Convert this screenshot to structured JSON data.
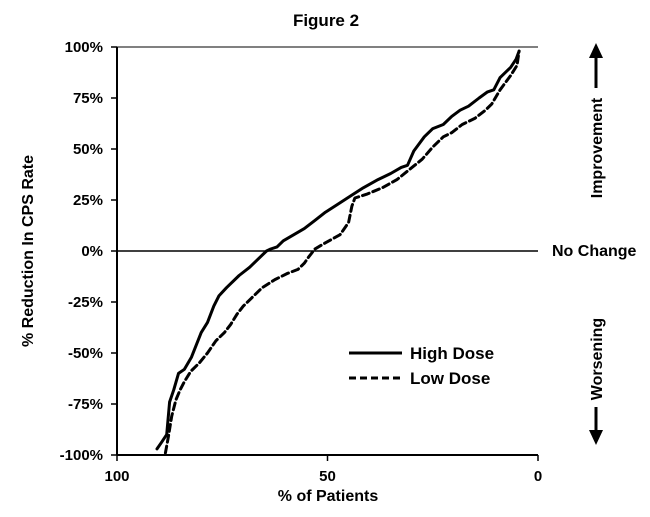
{
  "chart_data": {
    "type": "line",
    "title": "Figure 2",
    "xlabel": "% of Patients",
    "ylabel": "% Reduction In CPS Rate",
    "xlim": [
      100,
      0
    ],
    "ylim": [
      -100,
      100
    ],
    "x_ticks": [
      {
        "value": 100,
        "label": "100"
      },
      {
        "value": 50,
        "label": "50"
      },
      {
        "value": 0,
        "label": "0"
      }
    ],
    "y_ticks": [
      {
        "value": 100,
        "label": "100%"
      },
      {
        "value": 75,
        "label": "75%"
      },
      {
        "value": 50,
        "label": "50%"
      },
      {
        "value": 25,
        "label": "25%"
      },
      {
        "value": 0,
        "label": "0%"
      },
      {
        "value": -25,
        "label": "-25%"
      },
      {
        "value": -50,
        "label": "-50%"
      },
      {
        "value": -75,
        "label": "-75%"
      },
      {
        "value": -100,
        "label": "-100%"
      }
    ],
    "reference_line": {
      "y": 0,
      "label": "No Change"
    },
    "annotations": {
      "up": "Improvement",
      "down": "Worsening"
    },
    "legend_position": "center-right",
    "series": [
      {
        "name": "High Dose",
        "style": "solid",
        "x": [
          90.5,
          89.5,
          88.2,
          87.5,
          86.5,
          85.4,
          84,
          82.3,
          80,
          78.5,
          77,
          75.8,
          74,
          71,
          68.5,
          66.5,
          64.5,
          63.5,
          62,
          60.5,
          58,
          55.5,
          53,
          50.5,
          47.5,
          44.5,
          41.5,
          38,
          35,
          32.5,
          31,
          29.5,
          27,
          25,
          22.5,
          20.5,
          18.5,
          16.5,
          14,
          12,
          10.5,
          9,
          6.5,
          5.2,
          4.5
        ],
        "y": [
          -97,
          -94,
          -90,
          -74,
          -68,
          -60,
          -58,
          -52,
          -40,
          -35,
          -27,
          -22,
          -18,
          -12,
          -8,
          -4,
          0,
          1,
          2,
          5,
          8,
          11,
          15,
          19,
          23,
          27,
          31,
          35,
          38,
          41,
          42,
          49,
          56,
          60,
          62,
          66,
          69,
          71,
          75,
          78,
          79,
          85,
          90,
          94,
          98
        ]
      },
      {
        "name": "Low Dose",
        "style": "dashed",
        "x": [
          88.5,
          87.8,
          87,
          86,
          85,
          84,
          82.5,
          80.5,
          78.5,
          76.5,
          74.5,
          73,
          71.5,
          70,
          68,
          65.5,
          62.5,
          59.5,
          57,
          55.5,
          54.5,
          53,
          50.5,
          47,
          45,
          44.2,
          43.5,
          40.5,
          37,
          33.5,
          30.5,
          27.5,
          25,
          22.5,
          20.5,
          18,
          15,
          12.5,
          11,
          9,
          6.5,
          5,
          4.5
        ],
        "y": [
          -99,
          -91,
          -81,
          -73,
          -68,
          -64,
          -59,
          -55,
          -50,
          -44,
          -40,
          -36,
          -31,
          -27,
          -23,
          -18,
          -14,
          -11,
          -9,
          -6,
          -3,
          1,
          4,
          8,
          14,
          22,
          26,
          28,
          31,
          35,
          40,
          45,
          51,
          56,
          58,
          62,
          65,
          69,
          72,
          79,
          86,
          91,
          98
        ]
      }
    ]
  }
}
